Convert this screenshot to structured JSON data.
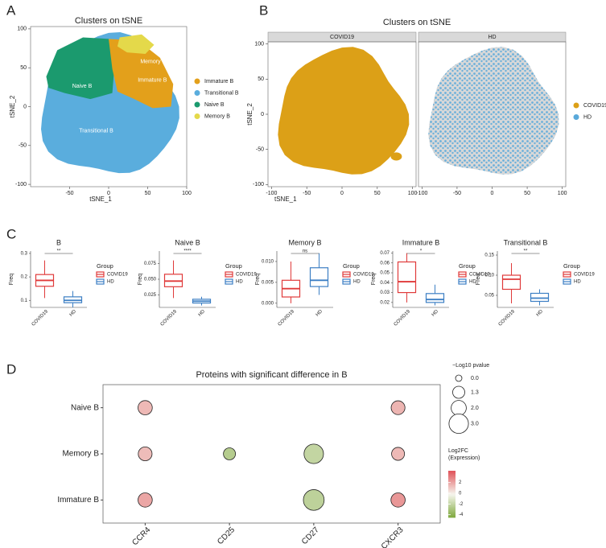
{
  "panels": [
    "A",
    "B",
    "C",
    "D"
  ],
  "chart_data": [
    {
      "type": "scatter",
      "title": "Clusters on tSNE",
      "xlabel": "tSNE_1",
      "ylabel": "tSNE_2",
      "xlim": [
        -100,
        100
      ],
      "ylim": [
        -103,
        103
      ],
      "xticks": [
        -50,
        0,
        50,
        100
      ],
      "yticks": [
        -100,
        -50,
        0,
        50,
        100
      ],
      "series": [
        {
          "name": "Immature B",
          "color": "#e3a01b"
        },
        {
          "name": "Transitional B",
          "color": "#5aaddd"
        },
        {
          "name": "Naive B",
          "color": "#1b9a6e"
        },
        {
          "name": "Memory B",
          "color": "#e4d94a"
        }
      ],
      "annotations": [
        {
          "text": "Memory B",
          "x": 57,
          "y": 58
        },
        {
          "text": "Immature B",
          "x": 56,
          "y": 34
        },
        {
          "text": "Naive B",
          "x": -34,
          "y": 26
        },
        {
          "text": "Transitional B",
          "x": -16,
          "y": -31
        }
      ]
    },
    {
      "type": "scatter",
      "title": "Clusters on tSNE",
      "xlabel": "tSNE_1",
      "ylabel": "tSNE_2",
      "facets": [
        "COVID19",
        "HD"
      ],
      "xlim": [
        -105,
        105
      ],
      "ylim": [
        -103,
        103
      ],
      "xticks": [
        -100,
        -50,
        0,
        50,
        100
      ],
      "yticks": [
        -100,
        -50,
        0,
        50,
        100
      ],
      "series": [
        {
          "name": "COVID19",
          "color": "#dca017"
        },
        {
          "name": "HD",
          "color": "#59a9da"
        }
      ]
    },
    {
      "type": "box",
      "title": "B",
      "ylabel": "Freq",
      "legend_title": "Group",
      "categories": [
        "COVID19",
        "HD"
      ],
      "colors": [
        "#e03a3a",
        "#3c7fc4"
      ],
      "annotation": "**",
      "ylim": [
        0.07,
        0.31
      ],
      "yticks": [
        0.1,
        0.2,
        0.3
      ],
      "boxes": [
        {
          "min": 0.11,
          "q1": 0.16,
          "median": 0.185,
          "q3": 0.21,
          "max": 0.27
        },
        {
          "min": 0.07,
          "q1": 0.09,
          "median": 0.1,
          "q3": 0.115,
          "max": 0.14
        }
      ]
    },
    {
      "type": "box",
      "title": "Naive B",
      "ylabel": "Freq",
      "legend_title": "Group",
      "categories": [
        "COVID19",
        "HD"
      ],
      "colors": [
        "#e03a3a",
        "#3c7fc4"
      ],
      "annotation": "****",
      "ylim": [
        0.005,
        0.095
      ],
      "yticks": [
        0.025,
        {
          "value": 0.05,
          "label": "0.050"
        },
        0.075
      ],
      "boxes": [
        {
          "min": 0.02,
          "q1": 0.038,
          "median": 0.047,
          "q3": 0.058,
          "max": 0.08
        },
        {
          "min": 0.008,
          "q1": 0.012,
          "median": 0.015,
          "q3": 0.018,
          "max": 0.022
        }
      ]
    },
    {
      "type": "box",
      "title": "Memory B",
      "ylabel": "Freq",
      "legend_title": "Group",
      "categories": [
        "COVID19",
        "HD"
      ],
      "colors": [
        "#e03a3a",
        "#3c7fc4"
      ],
      "annotation": "ns",
      "ylim": [
        -0.001,
        0.0125
      ],
      "yticks": [
        {
          "value": 0,
          "label": "0.000"
        },
        0.005,
        {
          "value": 0.01,
          "label": "0.010"
        }
      ],
      "boxes": [
        {
          "min": 0,
          "q1": 0.0015,
          "median": 0.0035,
          "q3": 0.0055,
          "max": 0.01
        },
        {
          "min": 0.002,
          "q1": 0.004,
          "median": 0.0055,
          "q3": 0.0085,
          "max": 0.012
        }
      ]
    },
    {
      "type": "box",
      "title": "Immature B",
      "ylabel": "Freq",
      "legend_title": "Group",
      "categories": [
        "COVID19",
        "HD"
      ],
      "colors": [
        "#e03a3a",
        "#3c7fc4"
      ],
      "annotation": "*",
      "ylim": [
        0.015,
        0.072
      ],
      "yticks": [
        0.02,
        0.03,
        0.04,
        0.05,
        0.06,
        0.07
      ],
      "boxes": [
        {
          "min": 0.02,
          "q1": 0.03,
          "median": 0.041,
          "q3": 0.061,
          "max": 0.07
        },
        {
          "min": 0.017,
          "q1": 0.02,
          "median": 0.023,
          "q3": 0.029,
          "max": 0.038
        }
      ]
    },
    {
      "type": "box",
      "title": "Transitional B",
      "ylabel": "Freq",
      "legend_title": "Group",
      "categories": [
        "COVID19",
        "HD"
      ],
      "colors": [
        "#e03a3a",
        "#3c7fc4"
      ],
      "annotation": "**",
      "ylim": [
        0.02,
        0.16
      ],
      "yticks": [
        0.05,
        {
          "value": 0.1,
          "label": "0.10"
        },
        0.15
      ],
      "boxes": [
        {
          "min": 0.03,
          "q1": 0.065,
          "median": 0.09,
          "q3": 0.1,
          "max": 0.13
        },
        {
          "min": 0.025,
          "q1": 0.035,
          "median": 0.043,
          "q3": 0.055,
          "max": 0.065
        }
      ]
    },
    {
      "type": "bubble",
      "title": "Proteins with significant difference in B",
      "x_categories": [
        "CCR4",
        "CD25",
        "CD27",
        "CXCR3"
      ],
      "y_categories": [
        "Naive B",
        "Memory B",
        "Immature B"
      ],
      "points": [
        {
          "x": 0,
          "y": 0,
          "size": 1.8,
          "color_value": 1.5
        },
        {
          "x": 3,
          "y": 0,
          "size": 1.7,
          "color_value": 1.6
        },
        {
          "x": 0,
          "y": 1,
          "size": 1.7,
          "color_value": 1.4
        },
        {
          "x": 1,
          "y": 1,
          "size": 1.3,
          "color_value": -2.5
        },
        {
          "x": 2,
          "y": 1,
          "size": 3.0,
          "color_value": -2
        },
        {
          "x": 3,
          "y": 1,
          "size": 1.5,
          "color_value": 1.5
        },
        {
          "x": 0,
          "y": 2,
          "size": 1.8,
          "color_value": 2
        },
        {
          "x": 2,
          "y": 2,
          "size": 3.3,
          "color_value": -2.2
        },
        {
          "x": 3,
          "y": 2,
          "size": 1.8,
          "color_value": 2.4
        }
      ],
      "size_title": "−Log10 pvalue",
      "size_ticks": [
        {
          "value": 0,
          "label": "0.0"
        },
        1.3,
        {
          "value": 2,
          "label": "2.0"
        },
        {
          "value": 3,
          "label": "3.0"
        }
      ],
      "color_title": [
        "Log2FC",
        "(Expression)"
      ],
      "color_ticks": [
        2,
        0,
        -2,
        -4
      ],
      "clim": [
        -4.5,
        4.2
      ],
      "colormap": [
        "#7ea83c",
        "#f6f6ee",
        "#e0545a"
      ]
    }
  ]
}
